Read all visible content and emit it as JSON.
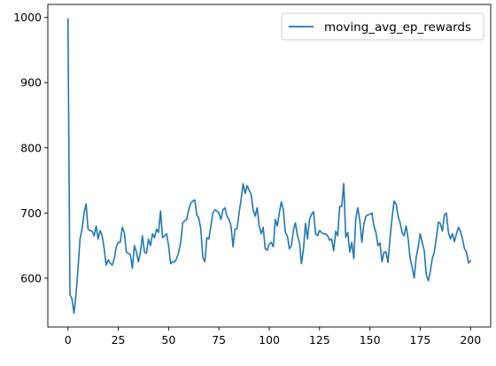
{
  "chart_data": {
    "type": "line",
    "title": "",
    "xlabel": "",
    "ylabel": "",
    "xlim": [
      -10,
      210
    ],
    "ylim": [
      525,
      1020
    ],
    "xticks": [
      0,
      25,
      50,
      75,
      100,
      125,
      150,
      175,
      200
    ],
    "yticks": [
      600,
      700,
      800,
      900,
      1000
    ],
    "grid": false,
    "legend": {
      "position": "top-right",
      "entries": [
        "moving_avg_ep_rewards"
      ]
    },
    "series": [
      {
        "name": "moving_avg_ep_rewards",
        "color": "#1f77b4",
        "x": [
          0,
          1,
          2,
          3,
          4,
          5,
          6,
          7,
          8,
          9,
          10,
          11,
          12,
          13,
          14,
          15,
          16,
          17,
          18,
          19,
          20,
          21,
          22,
          23,
          24,
          25,
          26,
          27,
          28,
          29,
          30,
          31,
          32,
          33,
          34,
          35,
          36,
          37,
          38,
          39,
          40,
          41,
          42,
          43,
          44,
          45,
          46,
          47,
          48,
          49,
          50,
          51,
          52,
          53,
          54,
          55,
          56,
          57,
          58,
          59,
          60,
          61,
          62,
          63,
          64,
          65,
          66,
          67,
          68,
          69,
          70,
          71,
          72,
          73,
          74,
          75,
          76,
          77,
          78,
          79,
          80,
          81,
          82,
          83,
          84,
          85,
          86,
          87,
          88,
          89,
          90,
          91,
          92,
          93,
          94,
          95,
          96,
          97,
          98,
          99,
          100,
          101,
          102,
          103,
          104,
          105,
          106,
          107,
          108,
          109,
          110,
          111,
          112,
          113,
          114,
          115,
          116,
          117,
          118,
          119,
          120,
          121,
          122,
          123,
          124,
          125,
          126,
          127,
          128,
          129,
          130,
          131,
          132,
          133,
          134,
          135,
          136,
          137,
          138,
          139,
          140,
          141,
          142,
          143,
          144,
          145,
          146,
          147,
          148,
          149,
          150,
          151,
          152,
          153,
          154,
          155,
          156,
          157,
          158,
          159,
          160,
          161,
          162,
          163,
          164,
          165,
          166,
          167,
          168,
          169,
          170,
          171,
          172,
          173,
          174,
          175,
          176,
          177,
          178,
          179,
          180,
          181,
          182,
          183,
          184,
          185,
          186,
          187,
          188,
          189,
          190,
          191,
          192,
          193,
          194,
          195,
          196,
          197,
          198,
          199,
          200
        ],
        "y": [
          998,
          575,
          568,
          546,
          575,
          615,
          660,
          675,
          700,
          714,
          675,
          673,
          672,
          665,
          680,
          660,
          673,
          665,
          645,
          620,
          628,
          623,
          620,
          630,
          648,
          655,
          655,
          678,
          670,
          640,
          638,
          636,
          615,
          650,
          640,
          625,
          640,
          665,
          640,
          638,
          660,
          650,
          668,
          662,
          675,
          670,
          703,
          662,
          665,
          668,
          650,
          622,
          625,
          625,
          630,
          640,
          655,
          685,
          688,
          690,
          705,
          715,
          718,
          720,
          697,
          692,
          675,
          632,
          625,
          662,
          660,
          680,
          700,
          705,
          703,
          700,
          690,
          705,
          708,
          695,
          690,
          680,
          648,
          675,
          676,
          700,
          720,
          745,
          730,
          742,
          735,
          728,
          705,
          695,
          708,
          680,
          668,
          678,
          645,
          643,
          652,
          655,
          648,
          690,
          680,
          700,
          717,
          705,
          670,
          665,
          645,
          650,
          673,
          685,
          665,
          655,
          622,
          645,
          684,
          660,
          690,
          698,
          702,
          668,
          665,
          673,
          670,
          668,
          668,
          665,
          658,
          660,
          642,
          672,
          665,
          710,
          710,
          745,
          663,
          670,
          640,
          655,
          630,
          692,
          708,
          688,
          655,
          683,
          695,
          697,
          698,
          700,
          680,
          670,
          650,
          654,
          625,
          640,
          640,
          624,
          662,
          692,
          718,
          714,
          695,
          685,
          670,
          665,
          680,
          660,
          630,
          617,
          600,
          632,
          648,
          668,
          655,
          642,
          606,
          596,
          610,
          630,
          640,
          662,
          686,
          684,
          672,
          697,
          700,
          670,
          660,
          668,
          656,
          668,
          678,
          672,
          660,
          645,
          640,
          623,
          627
        ]
      }
    ]
  }
}
